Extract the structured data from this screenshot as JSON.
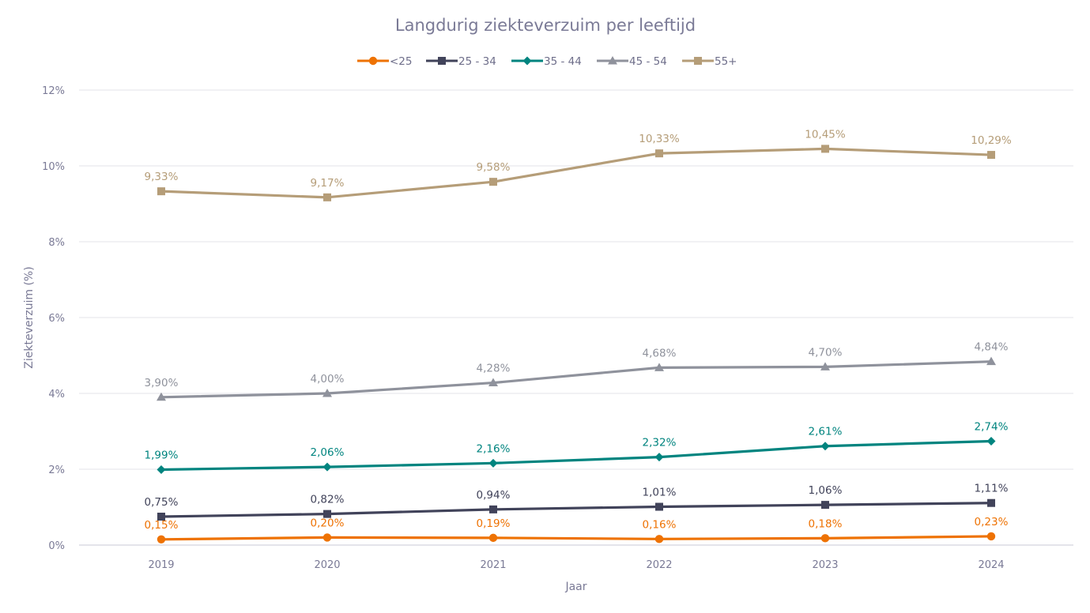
{
  "chart_data": {
    "type": "line",
    "title": "Langdurig ziekteverzuim per leeftijd",
    "xlabel": "Jaar",
    "ylabel": "Ziekteverzuim (%)",
    "categories": [
      "2019",
      "2020",
      "2021",
      "2022",
      "2023",
      "2024"
    ],
    "ylim": [
      0,
      12
    ],
    "yticks": [
      0,
      2,
      4,
      6,
      8,
      10,
      12
    ],
    "ytick_labels": [
      "0%",
      "2%",
      "4%",
      "6%",
      "8%",
      "10%",
      "12%"
    ],
    "grid": true,
    "legend_position": "top-center",
    "series": [
      {
        "name": "<25",
        "color": "#ee7203",
        "marker": "circle",
        "values": [
          0.15,
          0.2,
          0.19,
          0.16,
          0.18,
          0.23
        ],
        "labels": [
          "0,15%",
          "0,20%",
          "0,19%",
          "0,16%",
          "0,18%",
          "0,23%"
        ]
      },
      {
        "name": "25 - 34",
        "color": "#41435a",
        "marker": "square",
        "values": [
          0.75,
          0.82,
          0.94,
          1.01,
          1.06,
          1.11
        ],
        "labels": [
          "0,75%",
          "0,82%",
          "0,94%",
          "1,01%",
          "1,06%",
          "1,11%"
        ]
      },
      {
        "name": "35 - 44",
        "color": "#00847f",
        "marker": "diamond",
        "values": [
          1.99,
          2.06,
          2.16,
          2.32,
          2.61,
          2.74
        ],
        "labels": [
          "1,99%",
          "2,06%",
          "2,16%",
          "2,32%",
          "2,61%",
          "2,74%"
        ]
      },
      {
        "name": "45 - 54",
        "color": "#8f929c",
        "marker": "triangle",
        "values": [
          3.9,
          4.0,
          4.28,
          4.68,
          4.7,
          4.84
        ],
        "labels": [
          "3,90%",
          "4,00%",
          "4,28%",
          "4,68%",
          "4,70%",
          "4,84%"
        ]
      },
      {
        "name": "55+",
        "color": "#b59d78",
        "marker": "square",
        "values": [
          9.33,
          9.17,
          9.58,
          10.33,
          10.45,
          10.29
        ],
        "labels": [
          "9,33%",
          "9,17%",
          "9,58%",
          "10,33%",
          "10,45%",
          "10,29%"
        ]
      }
    ]
  }
}
